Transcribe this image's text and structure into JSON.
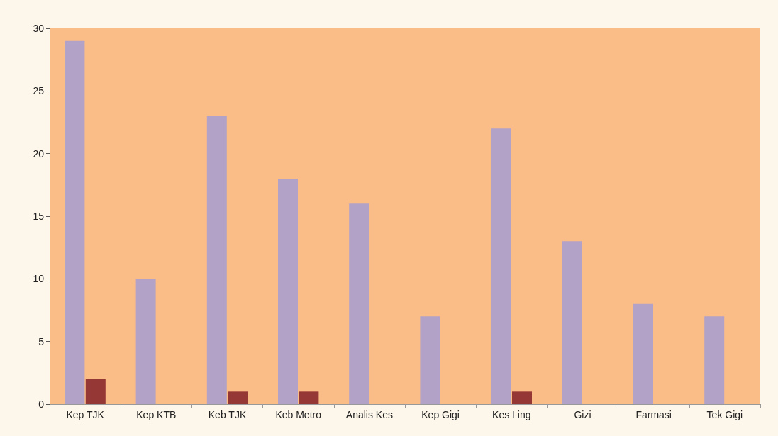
{
  "chart_data": {
    "type": "bar",
    "categories": [
      "Kep TJK",
      "Kep KTB",
      "Keb TJK",
      "Keb Metro",
      "Analis Kes",
      "Kep Gigi",
      "Kes Ling",
      "Gizi",
      "Farmasi",
      "Tek Gigi"
    ],
    "series": [
      {
        "color": "#b3a2c7",
        "values": [
          29,
          10,
          23,
          18,
          16,
          7,
          22,
          13,
          8,
          7
        ]
      },
      {
        "color": "#953735",
        "values": [
          2,
          0,
          1,
          1,
          0,
          0,
          1,
          0,
          0,
          0
        ]
      }
    ],
    "ylim": [
      0,
      30
    ],
    "yticks": [
      0,
      5,
      10,
      15,
      20,
      25,
      30
    ],
    "grid": false
  }
}
